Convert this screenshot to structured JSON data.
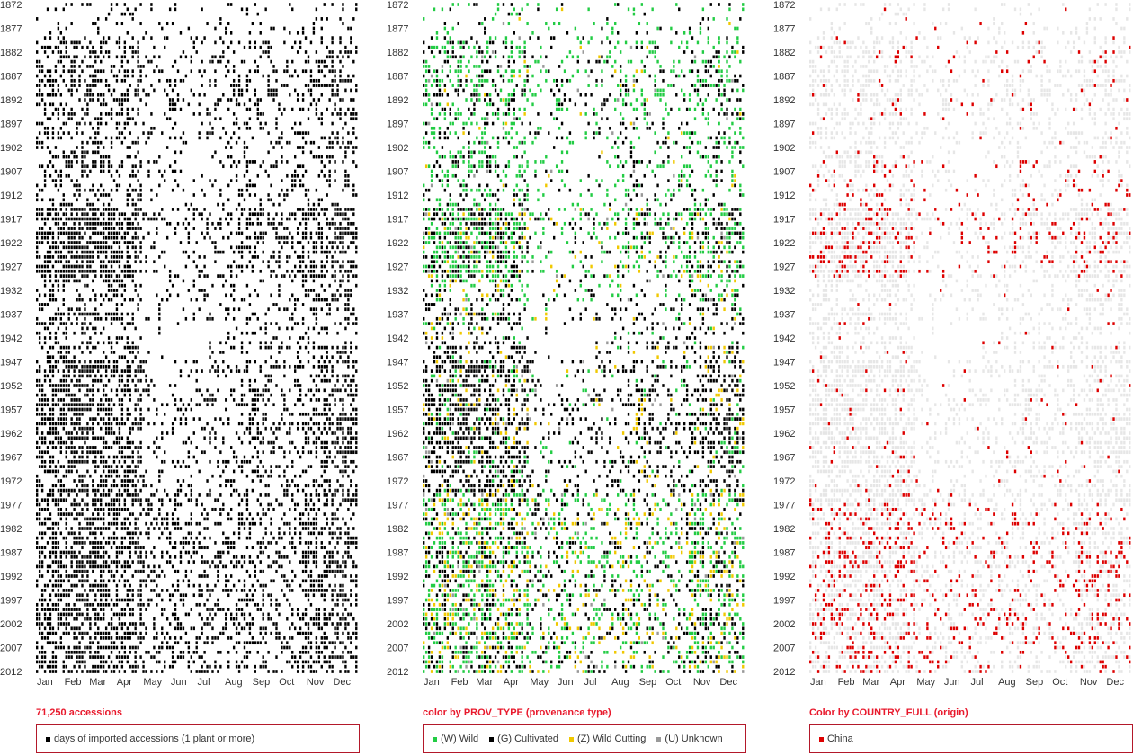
{
  "panels": [
    {
      "caption": "71,250 accessions",
      "legend": [
        {
          "label": "days of imported accessions (1 plant or more)",
          "color": "#000000"
        }
      ]
    },
    {
      "caption": "color by PROV_TYPE (provenance type)",
      "legend": [
        {
          "label": "(W) Wild",
          "color": "#22cc44"
        },
        {
          "label": "(G) Cultivated",
          "color": "#000000"
        },
        {
          "label": "(Z) Wild Cutting",
          "color": "#f0c800"
        },
        {
          "label": "(U) Unknown",
          "color": "#999999"
        }
      ]
    },
    {
      "caption": "Color by COUNTRY_FULL (origin)",
      "legend": [
        {
          "label": "China",
          "color": "#dd0000"
        }
      ]
    }
  ],
  "chart_data": [
    {
      "type": "heatmap",
      "title": "",
      "x_categories": [
        "Jan",
        "Feb",
        "Mar",
        "Apr",
        "May",
        "Jun",
        "Jul",
        "Aug",
        "Sep",
        "Oct",
        "Nov",
        "Dec"
      ],
      "y_tick_labels": [
        "1872",
        "1877",
        "1882",
        "1887",
        "1892",
        "1897",
        "1902",
        "1907",
        "1912",
        "1917",
        "1922",
        "1927",
        "1932",
        "1937",
        "1942",
        "1947",
        "1952",
        "1957",
        "1962",
        "1967",
        "1972",
        "1977",
        "1982",
        "1987",
        "1992",
        "1997",
        "2002",
        "2007",
        "2012"
      ],
      "y_range": [
        1872,
        2012
      ],
      "x_range_days": [
        1,
        366
      ],
      "series": [
        {
          "name": "days of imported accessions (1 plant or more)",
          "color": "#000000"
        }
      ]
    },
    {
      "type": "heatmap",
      "title": "",
      "x_categories": [
        "Jan",
        "Feb",
        "Mar",
        "Apr",
        "May",
        "Jun",
        "Jul",
        "Aug",
        "Sep",
        "Oct",
        "Nov",
        "Dec"
      ],
      "y_tick_labels": [
        "1872",
        "1877",
        "1882",
        "1887",
        "1892",
        "1897",
        "1902",
        "1907",
        "1912",
        "1917",
        "1922",
        "1927",
        "1932",
        "1937",
        "1942",
        "1947",
        "1952",
        "1957",
        "1962",
        "1967",
        "1972",
        "1977",
        "1982",
        "1987",
        "1992",
        "1997",
        "2002",
        "2007",
        "2012"
      ],
      "y_range": [
        1872,
        2012
      ],
      "x_range_days": [
        1,
        366
      ],
      "series": [
        {
          "name": "(W) Wild",
          "color": "#22cc44"
        },
        {
          "name": "(G) Cultivated",
          "color": "#000000"
        },
        {
          "name": "(Z) Wild Cutting",
          "color": "#f0c800"
        },
        {
          "name": "(U) Unknown",
          "color": "#999999"
        }
      ]
    },
    {
      "type": "heatmap",
      "title": "",
      "x_categories": [
        "Jan",
        "Feb",
        "Mar",
        "Apr",
        "May",
        "Jun",
        "Jul",
        "Aug",
        "Sep",
        "Oct",
        "Nov",
        "Dec"
      ],
      "y_tick_labels": [
        "1872",
        "1877",
        "1882",
        "1887",
        "1892",
        "1897",
        "1902",
        "1907",
        "1912",
        "1917",
        "1922",
        "1927",
        "1932",
        "1937",
        "1942",
        "1947",
        "1952",
        "1957",
        "1962",
        "1967",
        "1972",
        "1977",
        "1982",
        "1987",
        "1992",
        "1997",
        "2002",
        "2007",
        "2012"
      ],
      "y_range": [
        1872,
        2012
      ],
      "x_range_days": [
        1,
        366
      ],
      "series": [
        {
          "name": "China",
          "color": "#dd0000"
        },
        {
          "name": "",
          "color": "#e6e6e6"
        }
      ]
    }
  ]
}
